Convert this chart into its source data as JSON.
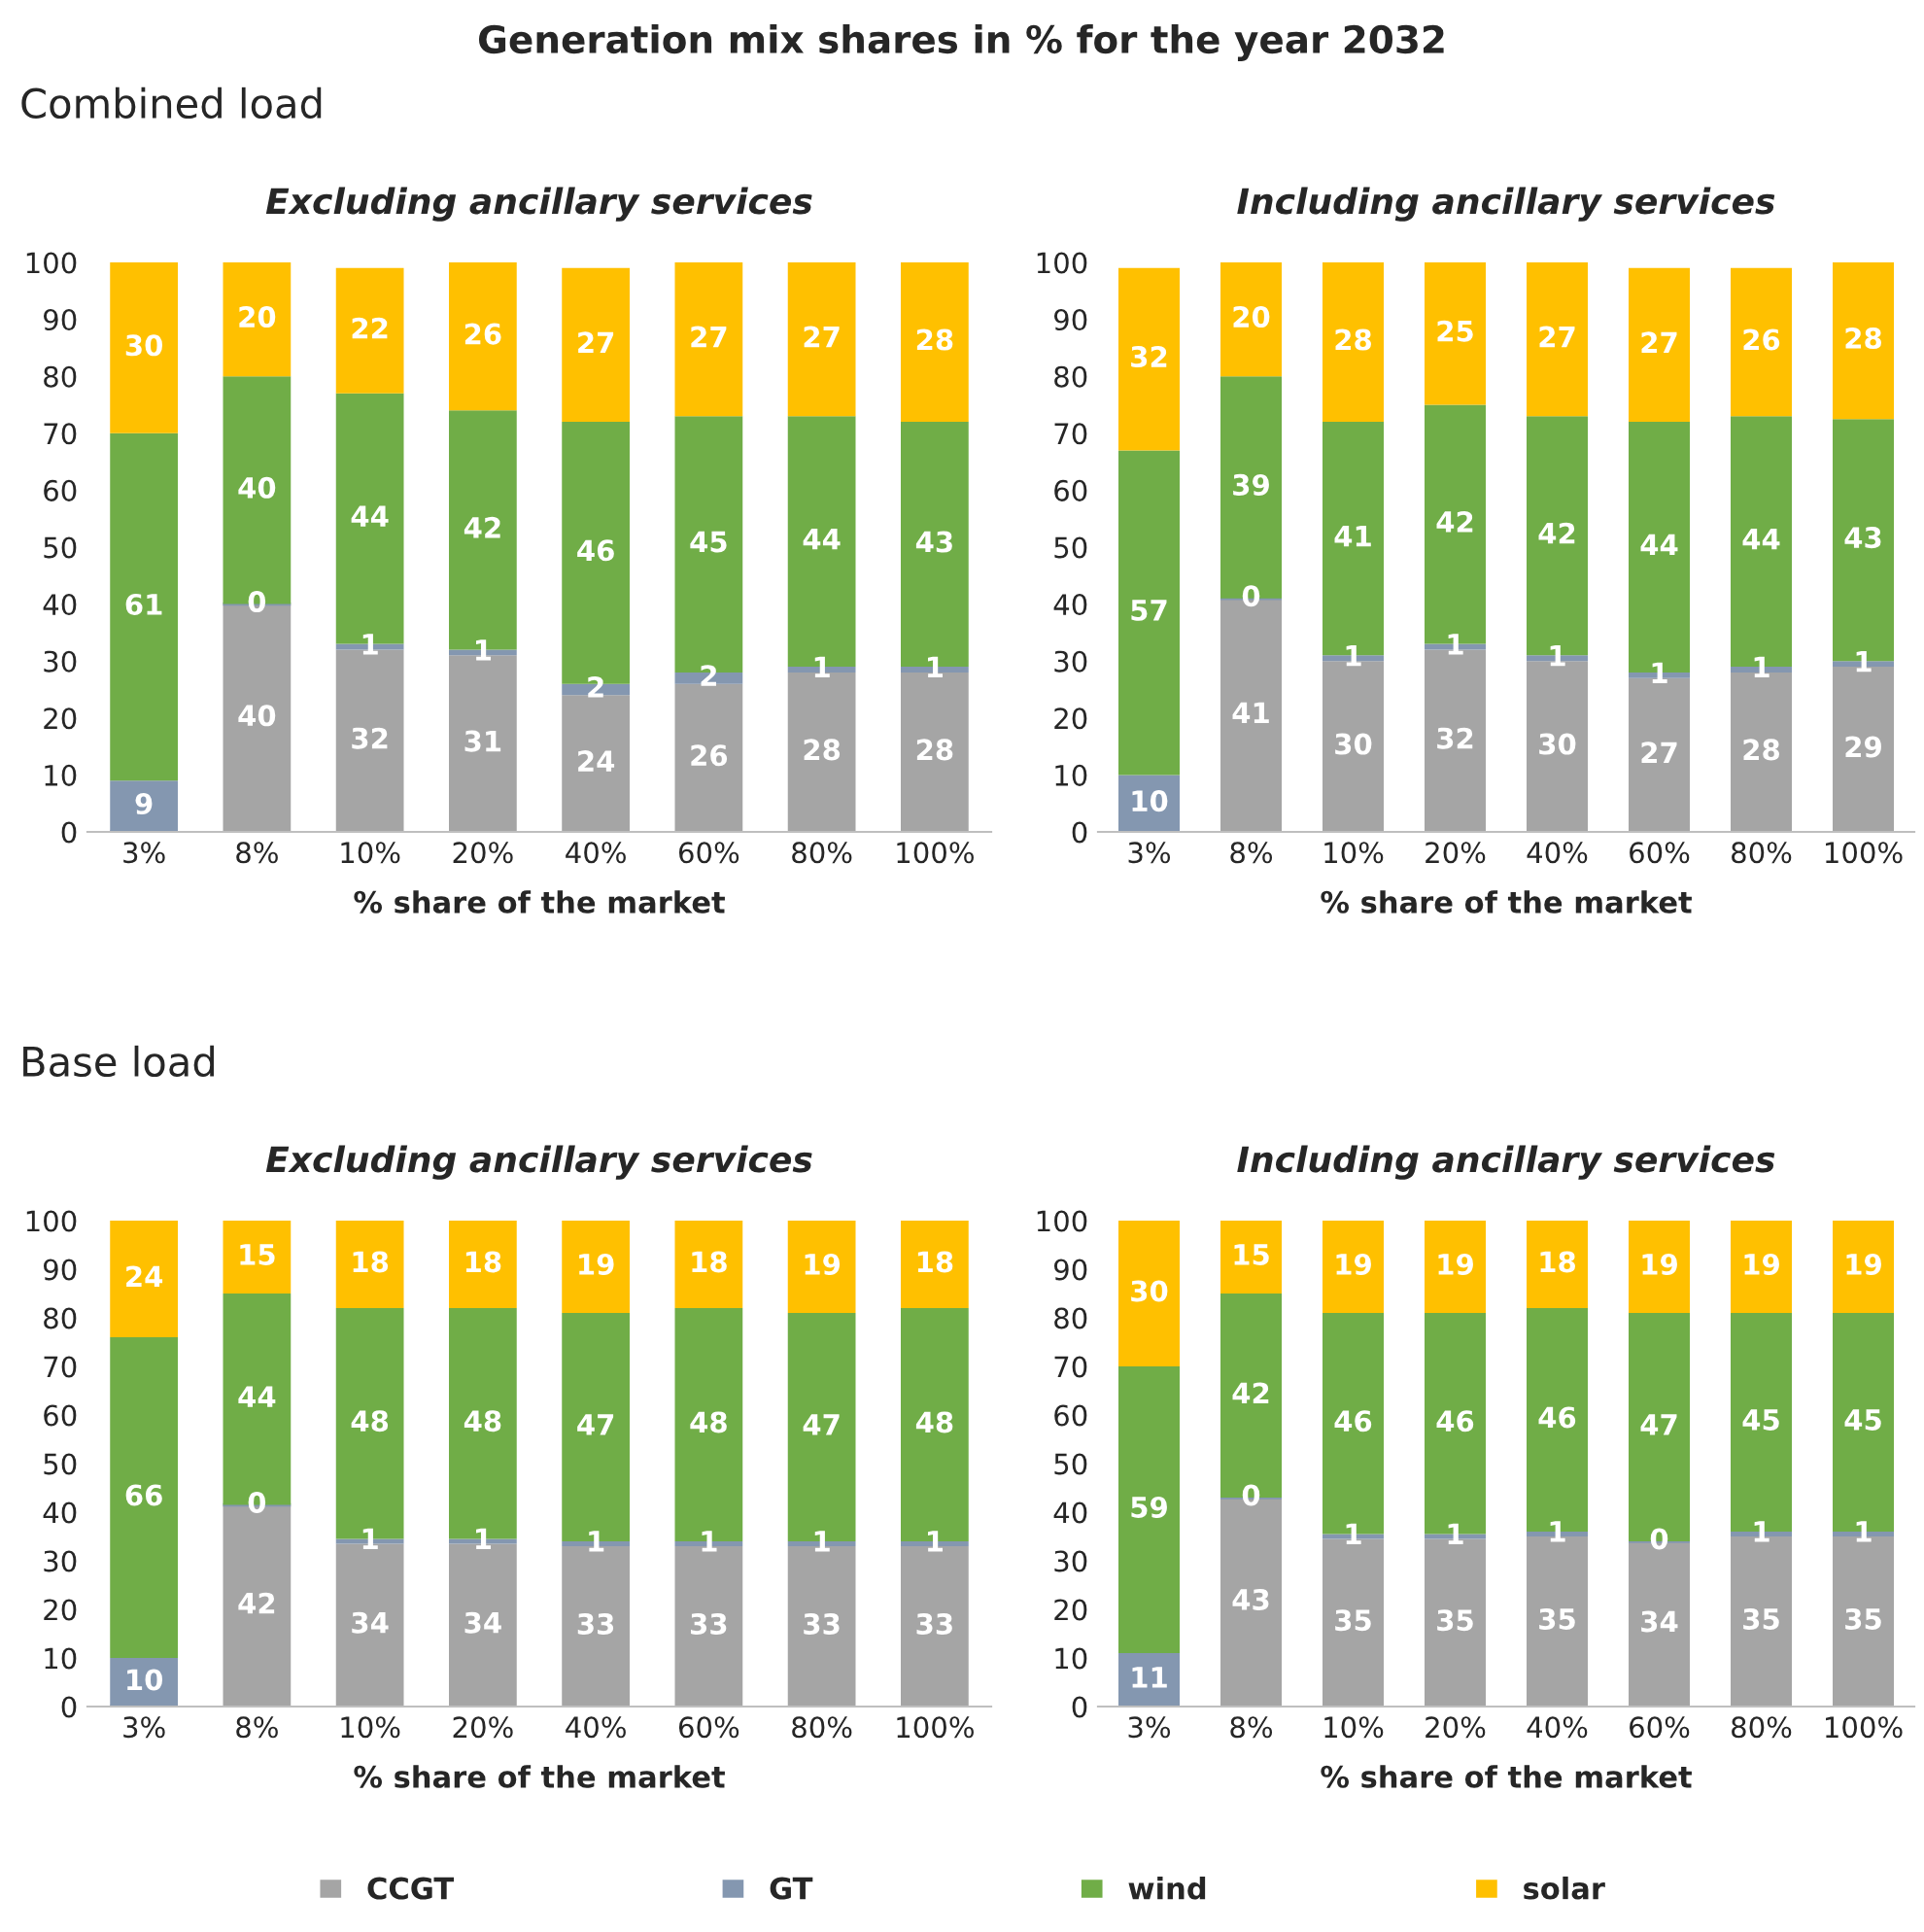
{
  "chart_data": [
    {
      "type": "bar",
      "stacked": true,
      "title": "Excluding ancillary services",
      "xlabel": "% share of the market",
      "annotations": [
        "Generation mix shares in % for the year 2032",
        "Combined load"
      ],
      "categories": [
        "3%",
        "8%",
        "10%",
        "20%",
        "40%",
        "60%",
        "80%",
        "100%"
      ],
      "ylim": [
        0,
        100
      ],
      "yticks": [
        0,
        10,
        20,
        30,
        40,
        50,
        60,
        70,
        80,
        90,
        100
      ],
      "grid": false,
      "series": [
        {
          "color": "#a5a5a5",
          "values": [
            0,
            40,
            32,
            31,
            24,
            26,
            28,
            28
          ],
          "value_labels": [
            null,
            "40",
            "32",
            "31",
            "24",
            "26",
            "28",
            "28"
          ]
        },
        {
          "color": "#8497b0",
          "values": [
            9,
            0,
            1,
            1,
            2,
            2,
            1,
            1
          ],
          "value_labels": [
            "9",
            "0",
            "1",
            "1",
            "2",
            "2",
            "1",
            "1"
          ]
        },
        {
          "color": "#70ad47",
          "values": [
            61,
            40,
            44,
            42,
            46,
            45,
            44,
            43
          ],
          "value_labels": [
            "61",
            "40",
            "44",
            "42",
            "46",
            "45",
            "44",
            "43"
          ]
        },
        {
          "color": "#ffc000",
          "values": [
            30,
            20,
            22,
            26,
            27,
            27,
            27,
            28
          ],
          "value_labels": [
            "30",
            "20",
            "22",
            "26",
            "27",
            "27",
            "27",
            "28"
          ]
        }
      ]
    },
    {
      "type": "bar",
      "stacked": true,
      "title": "Including ancillary services",
      "xlabel": "% share of the market",
      "categories": [
        "3%",
        "8%",
        "10%",
        "20%",
        "40%",
        "60%",
        "80%",
        "100%"
      ],
      "ylim": [
        0,
        100
      ],
      "yticks": [
        0,
        10,
        20,
        30,
        40,
        50,
        60,
        70,
        80,
        90,
        100
      ],
      "grid": false,
      "series": [
        {
          "color": "#a5a5a5",
          "values": [
            0,
            41,
            30,
            32,
            30,
            27,
            28,
            29
          ],
          "value_labels": [
            null,
            "41",
            "30",
            "32",
            "30",
            "27",
            "28",
            "29"
          ]
        },
        {
          "color": "#8497b0",
          "values": [
            10,
            0,
            1,
            1,
            1,
            1,
            1,
            1
          ],
          "value_labels": [
            "10",
            "0",
            "1",
            "1",
            "1",
            "1",
            "1",
            "1"
          ]
        },
        {
          "color": "#70ad47",
          "values": [
            57,
            39,
            41,
            42,
            42,
            44,
            44,
            42.5
          ],
          "value_labels": [
            "57",
            "39",
            "41",
            "42",
            "42",
            "44",
            "44",
            "43"
          ]
        },
        {
          "color": "#ffc000",
          "values": [
            32,
            20,
            28,
            25,
            27,
            27,
            26,
            27.5
          ],
          "value_labels": [
            "32",
            "20",
            "28",
            "25",
            "27",
            "27",
            "26",
            "28"
          ]
        }
      ]
    },
    {
      "type": "bar",
      "stacked": true,
      "title": "Excluding ancillary services",
      "xlabel": "% share of the market",
      "annotations": [
        "Base load"
      ],
      "categories": [
        "3%",
        "8%",
        "10%",
        "20%",
        "40%",
        "60%",
        "80%",
        "100%"
      ],
      "ylim": [
        0,
        100
      ],
      "yticks": [
        0,
        10,
        20,
        30,
        40,
        50,
        60,
        70,
        80,
        90,
        100
      ],
      "grid": false,
      "series": [
        {
          "color": "#a5a5a5",
          "values": [
            0,
            41.5,
            33.5,
            33.5,
            33,
            33,
            33,
            33
          ],
          "value_labels": [
            null,
            "42",
            "34",
            "34",
            "33",
            "33",
            "33",
            "33"
          ]
        },
        {
          "color": "#8497b0",
          "values": [
            10,
            0,
            1,
            1,
            1,
            1,
            1,
            1
          ],
          "value_labels": [
            "10",
            "0",
            "1",
            "1",
            "1",
            "1",
            "1",
            "1"
          ]
        },
        {
          "color": "#70ad47",
          "values": [
            66,
            43.5,
            47.5,
            47.5,
            47,
            48,
            47,
            48
          ],
          "value_labels": [
            "66",
            "44",
            "48",
            "48",
            "47",
            "48",
            "47",
            "48"
          ]
        },
        {
          "color": "#ffc000",
          "values": [
            24,
            15,
            18,
            18,
            19,
            18,
            19,
            18
          ],
          "value_labels": [
            "24",
            "15",
            "18",
            "18",
            "19",
            "18",
            "19",
            "18"
          ]
        }
      ]
    },
    {
      "type": "bar",
      "stacked": true,
      "title": "Including ancillary services",
      "xlabel": "% share of the market",
      "categories": [
        "3%",
        "8%",
        "10%",
        "20%",
        "40%",
        "60%",
        "80%",
        "100%"
      ],
      "ylim": [
        0,
        100
      ],
      "yticks": [
        0,
        10,
        20,
        30,
        40,
        50,
        60,
        70,
        80,
        90,
        100
      ],
      "grid": false,
      "legend": "bottom",
      "series": [
        {
          "name": "CCGT",
          "color": "#a5a5a5",
          "values": [
            0,
            43,
            34.5,
            34.5,
            35,
            34,
            35,
            35
          ],
          "value_labels": [
            null,
            "43",
            "35",
            "35",
            "35",
            "34",
            "35",
            "35"
          ]
        },
        {
          "name": "GT",
          "color": "#8497b0",
          "values": [
            11,
            0,
            1,
            1,
            1,
            0,
            1,
            1
          ],
          "value_labels": [
            "11",
            "0",
            "1",
            "1",
            "1",
            "0",
            "1",
            "1"
          ]
        },
        {
          "name": "wind",
          "color": "#70ad47",
          "values": [
            59,
            42,
            45.5,
            45.5,
            46,
            47,
            45,
            45
          ],
          "value_labels": [
            "59",
            "42",
            "46",
            "46",
            "46",
            "47",
            "45",
            "45"
          ]
        },
        {
          "name": "solar",
          "color": "#ffc000",
          "values": [
            30,
            15,
            19,
            19,
            18,
            19,
            19,
            19
          ],
          "value_labels": [
            "30",
            "15",
            "19",
            "19",
            "18",
            "19",
            "19",
            "19"
          ]
        }
      ]
    }
  ]
}
